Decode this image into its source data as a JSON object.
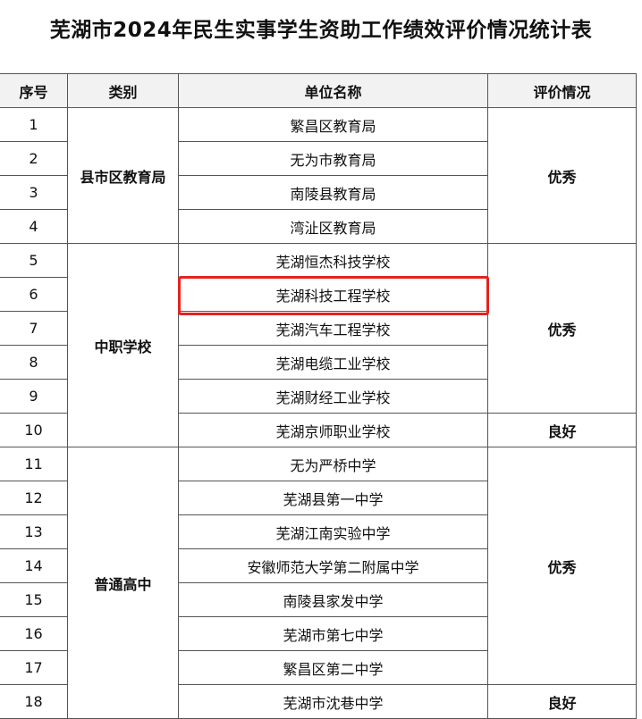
{
  "title": "芜湖市2024年民生实事学生资助工作绩效评价情况统计表",
  "table": {
    "header": [
      "序号",
      "类别",
      "单位名称",
      "评价情况"
    ],
    "groups": [
      {
        "category": "县市区教育局",
        "ratings": [
          {
            "rating": "优秀",
            "units": [
              {
                "no": 1,
                "name": "繁昌区教育局"
              },
              {
                "no": 2,
                "name": "无为市教育局"
              },
              {
                "no": 3,
                "name": "南陵县教育局"
              },
              {
                "no": 4,
                "name": "湾沚区教育局"
              }
            ]
          }
        ]
      },
      {
        "category": "中职学校",
        "ratings": [
          {
            "rating": "优秀",
            "units": [
              {
                "no": 5,
                "name": "芜湖恒杰科技学校"
              },
              {
                "no": 6,
                "name": "芜湖科技工程学校"
              },
              {
                "no": 7,
                "name": "芜湖汽车工程学校"
              },
              {
                "no": 8,
                "name": "芜湖电缆工业学校"
              },
              {
                "no": 9,
                "name": "芜湖财经工业学校"
              }
            ]
          },
          {
            "rating": "良好",
            "units": [
              {
                "no": 10,
                "name": "芜湖京师职业学校"
              }
            ]
          }
        ]
      },
      {
        "category": "普通高中",
        "ratings": [
          {
            "rating": "优秀",
            "units": [
              {
                "no": 11,
                "name": "无为严桥中学"
              },
              {
                "no": 12,
                "name": "芜湖县第一中学"
              },
              {
                "no": 13,
                "name": "芜湖江南实验中学"
              },
              {
                "no": 14,
                "name": "安徽师范大学第二附属中学"
              },
              {
                "no": 15,
                "name": "南陵县家发中学"
              },
              {
                "no": 16,
                "name": "芜湖市第七中学"
              },
              {
                "no": 17,
                "name": "繁昌区第二中学"
              }
            ]
          },
          {
            "rating": "良好",
            "units": [
              {
                "no": 18,
                "name": "芜湖市沈巷中学"
              }
            ]
          }
        ]
      }
    ]
  }
}
